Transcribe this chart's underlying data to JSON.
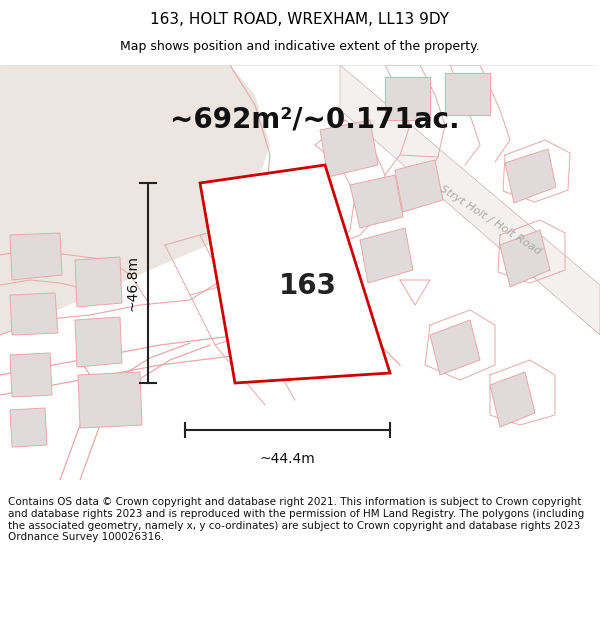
{
  "title": "163, HOLT ROAD, WREXHAM, LL13 9DY",
  "subtitle": "Map shows position and indicative extent of the property.",
  "area_text": "~692m²/~0.171ac.",
  "label_163": "163",
  "dim_width": "~44.4m",
  "dim_height": "~46.8m",
  "footer_text": "Contains OS data © Crown copyright and database right 2021. This information is subject to Crown copyright and database rights 2023 and is reproduced with the permission of HM Land Registry. The polygons (including the associated geometry, namely x, y co-ordinates) are subject to Crown copyright and database rights 2023 Ordnance Survey 100026316.",
  "road_label": "Stryt Holt / Holt Road",
  "map_bg": "#ffffff",
  "open_land_color": "#ede5e0",
  "road_line_color": "#e8a8a8",
  "building_fill": "#e0dada",
  "building_edge": "#e8a8a8",
  "road_band_color": "#f5f0f0",
  "road_edge_color": "#ccb0b0",
  "prop_fill": "#ffffff",
  "prop_edge": "#cc0000",
  "title_fontsize": 11,
  "subtitle_fontsize": 9,
  "area_fontsize": 20,
  "label_fontsize": 20,
  "dim_fontsize": 10,
  "footer_fontsize": 7.5
}
